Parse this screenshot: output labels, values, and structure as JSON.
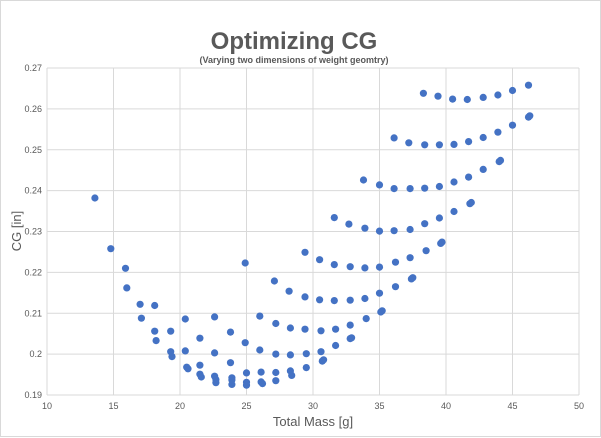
{
  "chart_data": {
    "type": "scatter",
    "title": "Optimizing CG",
    "subtitle": "(Varying two dimensions of weight geomtry)",
    "xlabel": "Total Mass [g]",
    "ylabel": "CG [in]",
    "xlim": [
      10,
      50
    ],
    "ylim": [
      0.19,
      0.27
    ],
    "x_ticks": [
      "10",
      "15",
      "20",
      "25",
      "30",
      "35",
      "40",
      "45",
      "50"
    ],
    "y_ticks": [
      "0.19",
      "0.2",
      "0.21",
      "0.22",
      "0.23",
      "0.24",
      "0.25",
      "0.26",
      "0.27"
    ],
    "grid": true,
    "legend": "none",
    "colors": {
      "series": "#4472c4",
      "grid": "#d9d9d9",
      "text": "#595959"
    },
    "series": [
      {
        "points": [
          [
            13.6,
            0.2382
          ],
          [
            14.8,
            0.2258
          ],
          [
            15.9,
            0.221
          ],
          [
            16.0,
            0.2162
          ],
          [
            17.0,
            0.2122
          ],
          [
            17.1,
            0.2088
          ],
          [
            18.1,
            0.2119
          ],
          [
            18.1,
            0.2056
          ],
          [
            18.2,
            0.2033
          ],
          [
            19.3,
            0.2056
          ],
          [
            19.3,
            0.2006
          ],
          [
            19.4,
            0.1994
          ],
          [
            20.4,
            0.2086
          ],
          [
            20.4,
            0.2008
          ],
          [
            20.5,
            0.1968
          ],
          [
            20.6,
            0.1964
          ],
          [
            21.5,
            0.2039
          ],
          [
            21.5,
            0.1973
          ],
          [
            21.5,
            0.1951
          ],
          [
            21.6,
            0.1944
          ],
          [
            22.6,
            0.2091
          ],
          [
            22.6,
            0.2003
          ],
          [
            22.6,
            0.1946
          ],
          [
            22.7,
            0.1938
          ],
          [
            22.7,
            0.193
          ],
          [
            23.8,
            0.2054
          ],
          [
            23.8,
            0.1979
          ],
          [
            23.9,
            0.1942
          ],
          [
            23.9,
            0.1937
          ],
          [
            23.9,
            0.1926
          ],
          [
            24.9,
            0.2223
          ],
          [
            24.9,
            0.2028
          ],
          [
            25.0,
            0.1954
          ],
          [
            25.0,
            0.1931
          ],
          [
            25.0,
            0.1924
          ],
          [
            26.0,
            0.2093
          ],
          [
            26.0,
            0.201
          ],
          [
            26.1,
            0.1956
          ],
          [
            26.1,
            0.1932
          ],
          [
            26.2,
            0.1928
          ],
          [
            27.1,
            0.2179
          ],
          [
            27.2,
            0.2075
          ],
          [
            27.2,
            0.2
          ],
          [
            27.2,
            0.1955
          ],
          [
            27.2,
            0.1935
          ],
          [
            28.2,
            0.2154
          ],
          [
            28.3,
            0.2064
          ],
          [
            28.3,
            0.1998
          ],
          [
            28.3,
            0.1959
          ],
          [
            28.4,
            0.1948
          ],
          [
            29.4,
            0.2249
          ],
          [
            29.4,
            0.214
          ],
          [
            29.4,
            0.2061
          ],
          [
            29.5,
            0.2001
          ],
          [
            29.5,
            0.1967
          ],
          [
            30.5,
            0.2231
          ],
          [
            30.5,
            0.2133
          ],
          [
            30.6,
            0.2057
          ],
          [
            30.6,
            0.2006
          ],
          [
            30.7,
            0.1983
          ],
          [
            30.8,
            0.1986
          ],
          [
            31.6,
            0.2334
          ],
          [
            31.6,
            0.2219
          ],
          [
            31.6,
            0.2131
          ],
          [
            31.7,
            0.2061
          ],
          [
            31.7,
            0.2021
          ],
          [
            32.7,
            0.2318
          ],
          [
            32.8,
            0.2214
          ],
          [
            32.8,
            0.2132
          ],
          [
            32.8,
            0.2071
          ],
          [
            32.8,
            0.2038
          ],
          [
            32.9,
            0.204
          ],
          [
            33.8,
            0.2426
          ],
          [
            33.9,
            0.2308
          ],
          [
            33.9,
            0.2211
          ],
          [
            33.9,
            0.2136
          ],
          [
            34.0,
            0.2087
          ],
          [
            35.0,
            0.2414
          ],
          [
            35.0,
            0.2301
          ],
          [
            35.0,
            0.2213
          ],
          [
            35.0,
            0.2149
          ],
          [
            35.1,
            0.2103
          ],
          [
            35.2,
            0.2106
          ],
          [
            36.1,
            0.2529
          ],
          [
            36.1,
            0.2405
          ],
          [
            36.1,
            0.2302
          ],
          [
            36.2,
            0.2225
          ],
          [
            36.2,
            0.2165
          ],
          [
            37.2,
            0.2517
          ],
          [
            37.3,
            0.2405
          ],
          [
            37.3,
            0.2305
          ],
          [
            37.3,
            0.2236
          ],
          [
            37.4,
            0.2184
          ],
          [
            37.5,
            0.2187
          ],
          [
            38.3,
            0.2638
          ],
          [
            38.4,
            0.2512
          ],
          [
            38.4,
            0.2406
          ],
          [
            38.4,
            0.2319
          ],
          [
            38.5,
            0.2253
          ],
          [
            39.4,
            0.2631
          ],
          [
            39.5,
            0.2512
          ],
          [
            39.5,
            0.241
          ],
          [
            39.5,
            0.2333
          ],
          [
            39.6,
            0.2271
          ],
          [
            39.7,
            0.2274
          ],
          [
            40.5,
            0.2624
          ],
          [
            40.6,
            0.2513
          ],
          [
            40.6,
            0.2421
          ],
          [
            40.6,
            0.2349
          ],
          [
            41.6,
            0.2623
          ],
          [
            41.7,
            0.252
          ],
          [
            41.7,
            0.2433
          ],
          [
            41.8,
            0.2368
          ],
          [
            41.9,
            0.2371
          ],
          [
            42.8,
            0.2628
          ],
          [
            42.8,
            0.253
          ],
          [
            42.8,
            0.2452
          ],
          [
            43.9,
            0.2634
          ],
          [
            43.9,
            0.2543
          ],
          [
            44.0,
            0.2471
          ],
          [
            44.1,
            0.2474
          ],
          [
            45.0,
            0.2645
          ],
          [
            45.0,
            0.256
          ],
          [
            46.2,
            0.2658
          ],
          [
            46.2,
            0.258
          ],
          [
            46.3,
            0.2583
          ]
        ]
      }
    ]
  }
}
